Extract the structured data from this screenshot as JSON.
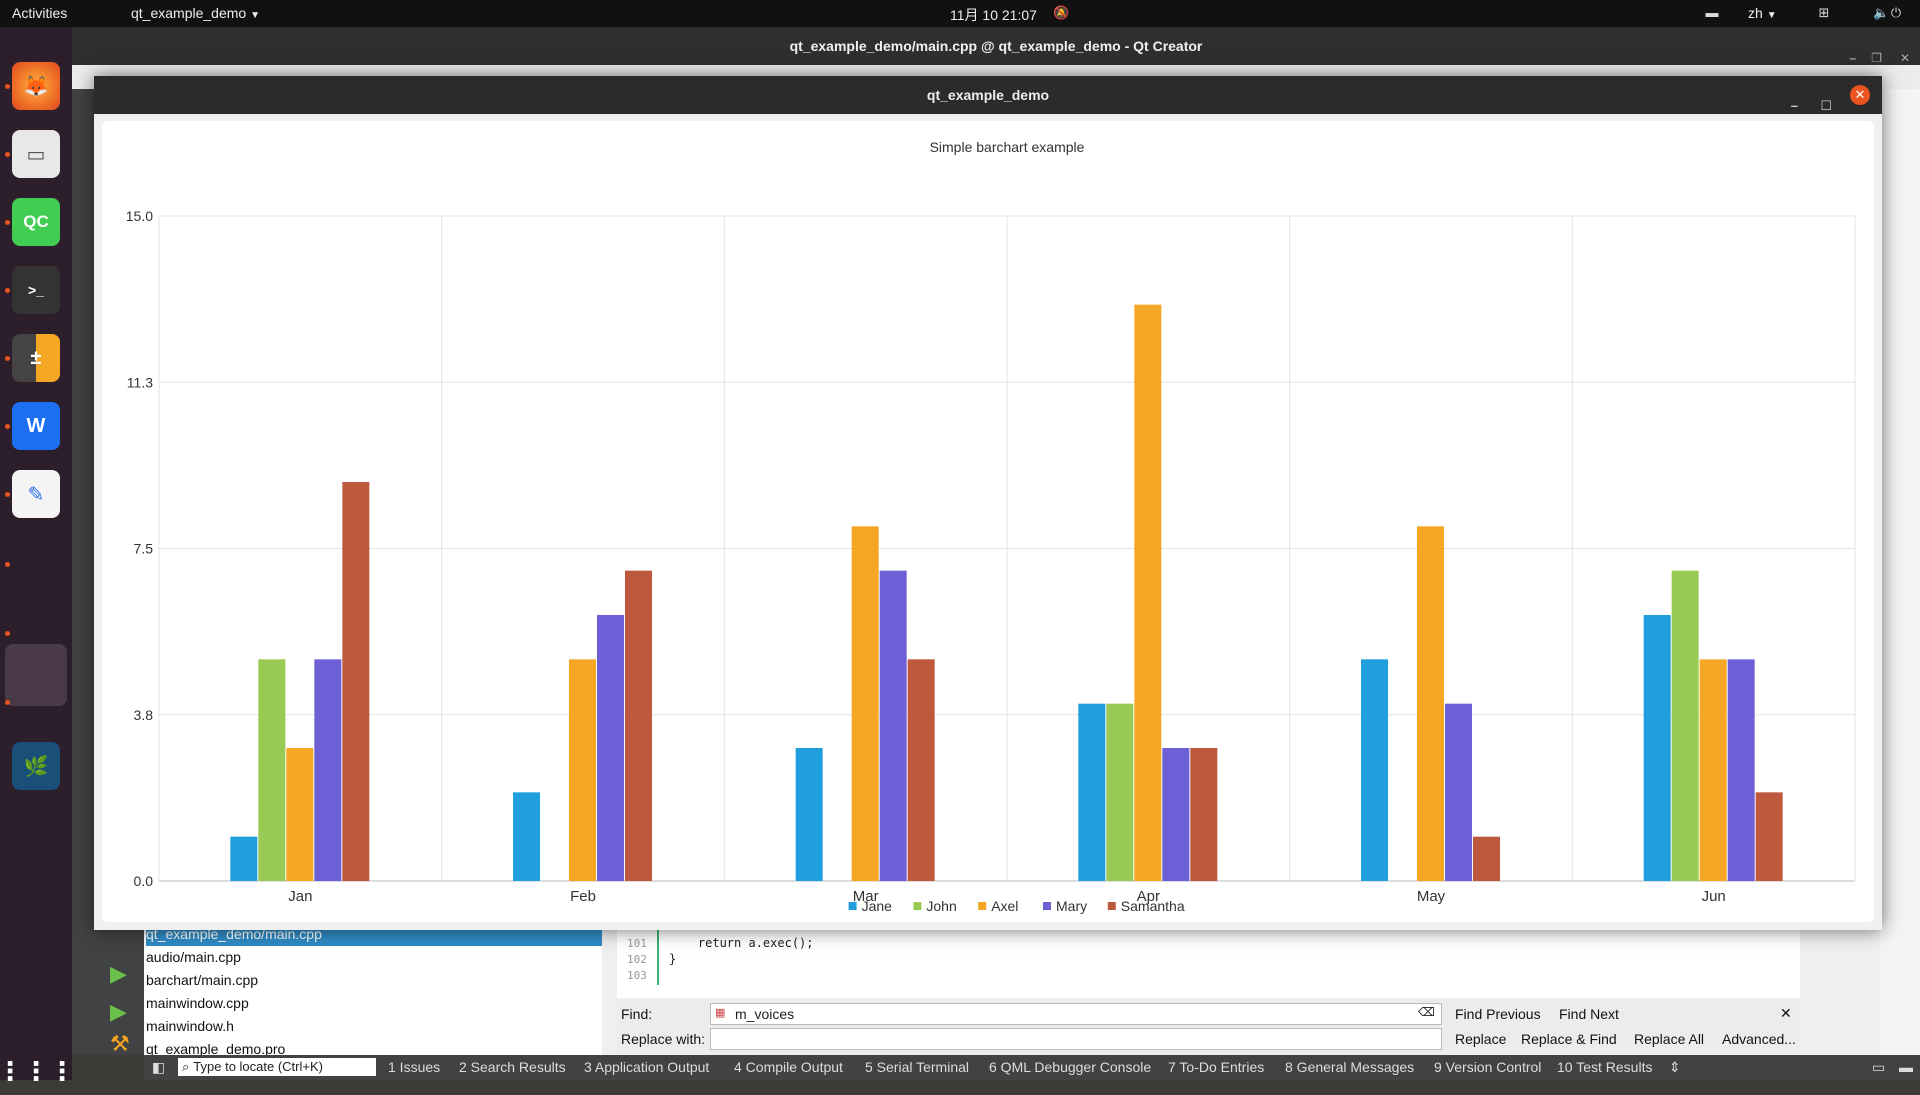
{
  "topbar": {
    "activities": "Activities",
    "app_menu": "qt_example_demo",
    "clock": "11月 10  21:07",
    "lang": "zh"
  },
  "qtcreator": {
    "title": "qt_example_demo/main.cpp @ qt_example_demo - Qt Creator",
    "project_files": [
      "qt_example_demo/main.cpp",
      "audio/main.cpp",
      "barchart/main.cpp",
      "mainwindow.cpp",
      "mainwindow.h",
      "qt_example_demo.pro"
    ],
    "editor_lines": [
      {
        "num": "101",
        "code": "    return a.exec();"
      },
      {
        "num": "102",
        "code": "}"
      },
      {
        "num": "103",
        "code": ""
      }
    ],
    "find": {
      "find_label": "Find:",
      "find_value": "m_voices",
      "replace_label": "Replace with:",
      "find_previous": "Find Previous",
      "find_next": "Find Next",
      "replace": "Replace",
      "replace_find": "Replace & Find",
      "replace_all": "Replace All",
      "advanced": "Advanced..."
    },
    "statusbar": {
      "locate_placeholder": "Type to locate (Ctrl+K)",
      "tabs": [
        "1  Issues",
        "2  Search Results",
        "3  Application Output",
        "4  Compile Output",
        "5  Serial Terminal",
        "6  QML Debugger Console",
        "7  To-Do Entries",
        "8  General Messages",
        "9  Version Control",
        "10 Test Results"
      ]
    }
  },
  "chart_window": {
    "title": "qt_example_demo"
  },
  "chart_data": {
    "type": "bar",
    "title": "Simple barchart example",
    "categories": [
      "Jan",
      "Feb",
      "Mar",
      "Apr",
      "May",
      "Jun"
    ],
    "ylim": [
      0,
      15
    ],
    "yticks": [
      "0.0",
      "3.8",
      "7.5",
      "11.3",
      "15.0"
    ],
    "grid": true,
    "legend_position": "bottom",
    "series": [
      {
        "name": "Jane",
        "color": "#209fdf",
        "values": [
          1,
          2,
          3,
          4,
          5,
          6
        ]
      },
      {
        "name": "John",
        "color": "#99ca53",
        "values": [
          5,
          0,
          0,
          4,
          0,
          7
        ]
      },
      {
        "name": "Axel",
        "color": "#f6a625",
        "values": [
          3,
          5,
          8,
          13,
          8,
          5
        ]
      },
      {
        "name": "Mary",
        "color": "#6d5fd5",
        "values": [
          5,
          6,
          7,
          3,
          4,
          5
        ]
      },
      {
        "name": "Samantha",
        "color": "#bf593e",
        "values": [
          9,
          7,
          5,
          3,
          1,
          2
        ]
      }
    ]
  }
}
